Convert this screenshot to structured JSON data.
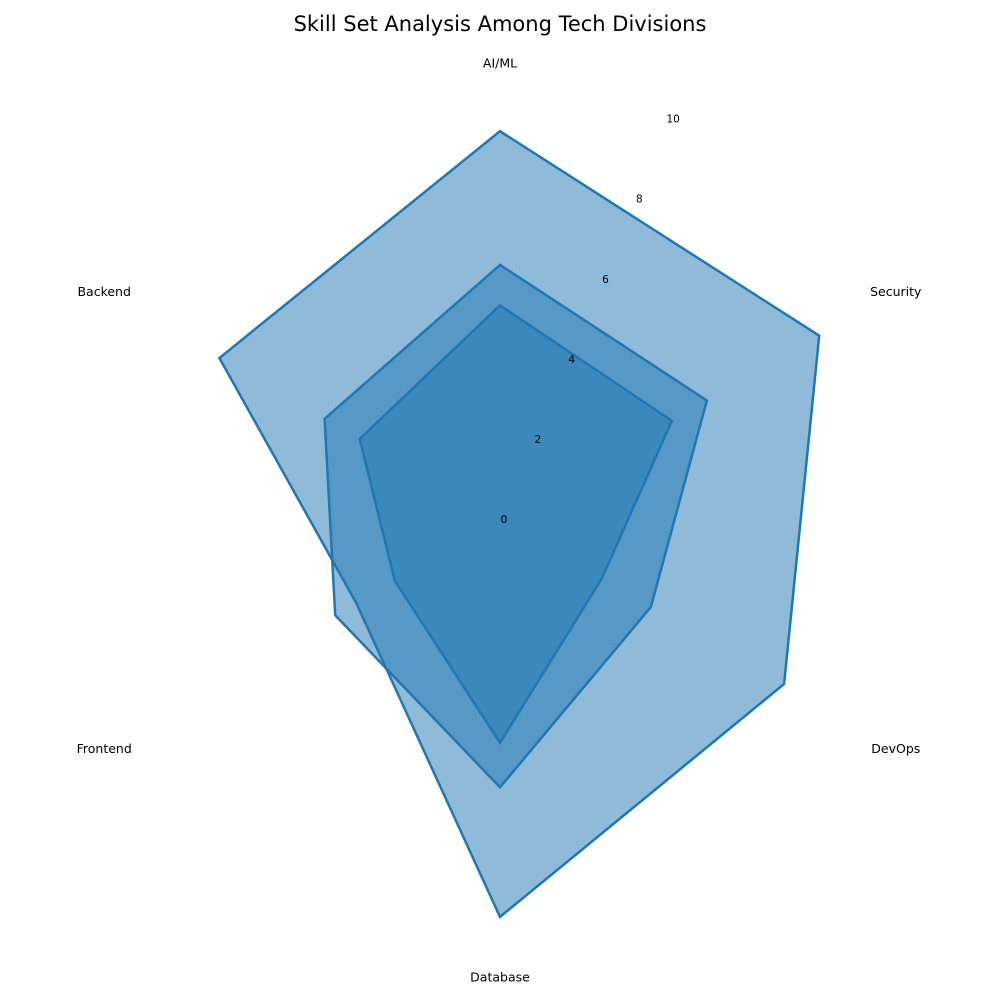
{
  "chart_data": {
    "type": "radar",
    "title": "Skill Set Analysis Among Tech Divisions",
    "axes": [
      "AI/ML",
      "Security",
      "DevOps",
      "Database",
      "Frontend",
      "Backend"
    ],
    "rlim": [
      0,
      10
    ],
    "ticks": [
      0,
      2,
      4,
      6,
      8,
      10
    ],
    "grid": false,
    "legend": "none",
    "series": [
      {
        "values": [
          9.6,
          9.1,
          8.1,
          9.8,
          4.1,
          8.0
        ]
      },
      {
        "values": [
          6.3,
          5.9,
          4.3,
          6.6,
          4.7,
          5.0
        ]
      },
      {
        "values": [
          5.3,
          4.9,
          2.9,
          5.5,
          3.0,
          4.0
        ]
      }
    ],
    "colors": {
      "line": "#1f77b4",
      "fill": "#1f77b4"
    },
    "fill_opacity": 0.5
  }
}
